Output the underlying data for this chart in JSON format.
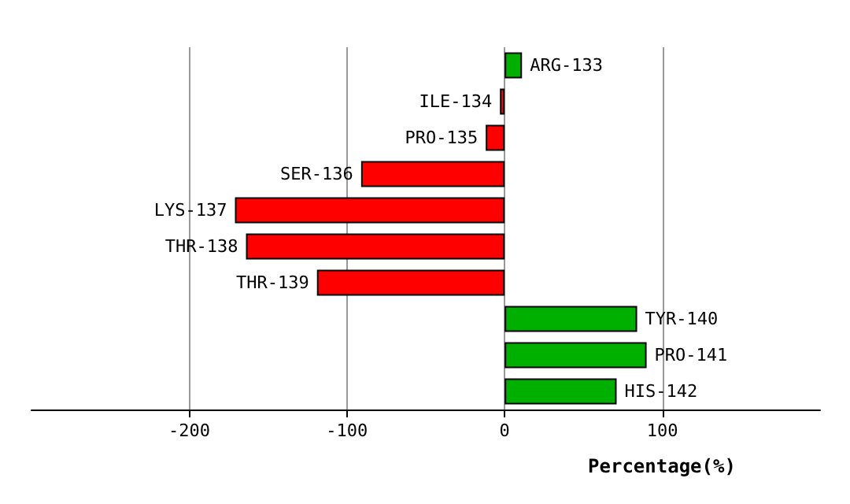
{
  "chart_data": {
    "type": "bar",
    "orientation": "horizontal",
    "xlabel": "Percentage(%)",
    "categories": [
      "ARG-133",
      "ILE-134",
      "PRO-135",
      "SER-136",
      "LYS-137",
      "THR-138",
      "THR-139",
      "TYR-140",
      "PRO-141",
      "HIS-142"
    ],
    "values": [
      11,
      -3,
      -12,
      -91,
      -171,
      -164,
      -119,
      84,
      90,
      71
    ],
    "colors": [
      "#00b000",
      "#ff0000",
      "#ff0000",
      "#ff0000",
      "#ff0000",
      "#ff0000",
      "#ff0000",
      "#00b000",
      "#00b000",
      "#00b000"
    ],
    "xlim": [
      -300,
      200
    ],
    "xticks": [
      -200,
      -100,
      0,
      100
    ],
    "grid": "x",
    "tick_labels": "x"
  }
}
